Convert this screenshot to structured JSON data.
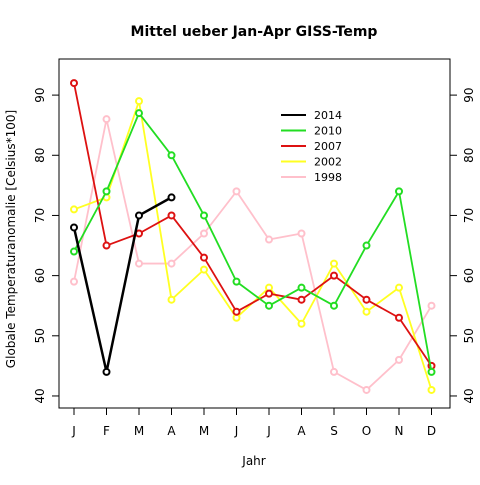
{
  "chart_data": {
    "type": "line",
    "title": "Mittel ueber Jan-Apr GISS-Temp",
    "xlabel": "Jahr",
    "ylabel": "Globale Temperaturanomalie [Celsius*100]",
    "categories": [
      "J",
      "F",
      "M",
      "A",
      "M",
      "J",
      "J",
      "A",
      "S",
      "O",
      "N",
      "D"
    ],
    "yticks": [
      "40",
      "50",
      "60",
      "70",
      "80",
      "90"
    ],
    "ylim": [
      38,
      96
    ],
    "grid": false,
    "legend_position": "top-right",
    "series": [
      {
        "name": "2014",
        "color": "#000000",
        "values": [
          68,
          44,
          70,
          73,
          null,
          null,
          null,
          null,
          null,
          null,
          null,
          null
        ]
      },
      {
        "name": "2010",
        "color": "#22dd22",
        "values": [
          64,
          74,
          87,
          80,
          70,
          59,
          55,
          58,
          55,
          65,
          74,
          44
        ]
      },
      {
        "name": "2007",
        "color": "#dd1111",
        "values": [
          92,
          65,
          67,
          70,
          63,
          54,
          57,
          56,
          60,
          56,
          53,
          45
        ]
      },
      {
        "name": "2002",
        "color": "#ffff22",
        "values": [
          71,
          73,
          89,
          56,
          61,
          53,
          58,
          52,
          62,
          54,
          58,
          41
        ]
      },
      {
        "name": "1998",
        "color": "#ffc0cb",
        "values": [
          59,
          86,
          62,
          62,
          67,
          74,
          66,
          67,
          44,
          41,
          46,
          55
        ]
      }
    ]
  }
}
